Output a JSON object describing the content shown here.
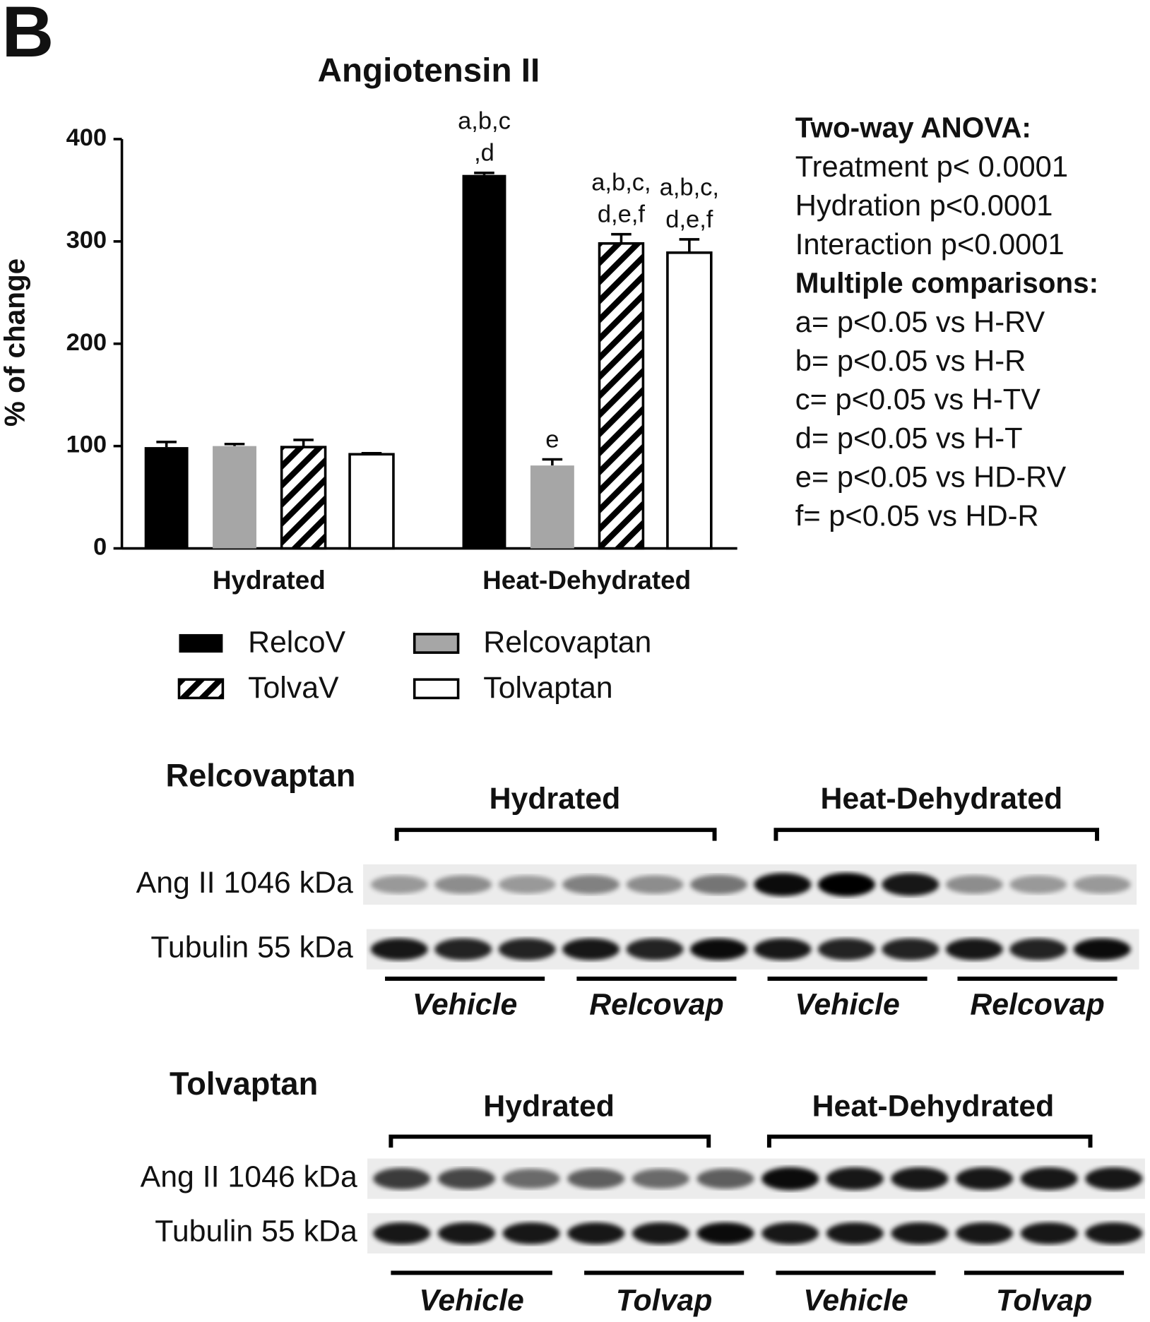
{
  "panel_label": "B",
  "chart_data": {
    "type": "bar",
    "title": "Angiotensin II",
    "y_label": "% of change",
    "categories": [
      "Hydrated",
      "Heat-Dehydrated"
    ],
    "ylim": [
      0,
      400
    ],
    "yticks": [
      0,
      100,
      200,
      300,
      400
    ],
    "series": [
      {
        "name": "RelcoV",
        "color": "#000000",
        "pattern": "solid",
        "values": [
          99,
          365
        ],
        "errors": [
          5,
          2
        ],
        "significance_labels": [
          null,
          [
            "a,b,c",
            ",d"
          ]
        ]
      },
      {
        "name": "Relcovaptan",
        "color": "#a6a6a6",
        "pattern": "solid",
        "values": [
          100,
          81
        ],
        "errors": [
          2,
          6
        ],
        "significance_labels": [
          null,
          [
            "e"
          ]
        ]
      },
      {
        "name": "TolvaV",
        "color": "#000000",
        "pattern": "hatch",
        "values": [
          99,
          298
        ],
        "errors": [
          7,
          9
        ],
        "significance_labels": [
          null,
          [
            "a,b,c,",
            "d,e,f"
          ]
        ]
      },
      {
        "name": "Tolvaptan",
        "color": "#ffffff",
        "pattern": "solid",
        "values": [
          92,
          289
        ],
        "errors": [
          1,
          13
        ],
        "significance_labels": [
          null,
          [
            "a,b,c,",
            "d,e,f"
          ]
        ]
      }
    ]
  },
  "stats": [
    "Two-way  ANOVA:",
    "Treatment p< 0.0001",
    "Hydration p<0.0001",
    "Interaction p<0.0001",
    "Multiple comparisons:",
    "a= p<0.05 vs H-RV",
    "b= p<0.05 vs H-R",
    "c= p<0.05 vs H-TV",
    "d= p<0.05 vs H-T",
    "e= p<0.05 vs HD-RV",
    "f= p<0.05 vs HD-R"
  ],
  "blots": [
    {
      "title": "Relcovaptan",
      "groups": [
        "Hydrated",
        "Heat-Dehydrated"
      ],
      "rows": [
        "Ang II 1046 kDa",
        "Tubulin 55 kDa"
      ],
      "treatments": [
        "Vehicle",
        "Relcovap",
        "Vehicle",
        "Relcovap"
      ]
    },
    {
      "title": "Tolvaptan",
      "groups": [
        "Hydrated",
        "Heat-Dehydrated"
      ],
      "rows": [
        "Ang II 1046 kDa",
        "Tubulin 55 kDa"
      ],
      "treatments": [
        "Vehicle",
        "Tolvap",
        "Vehicle",
        "Tolvap"
      ]
    }
  ]
}
